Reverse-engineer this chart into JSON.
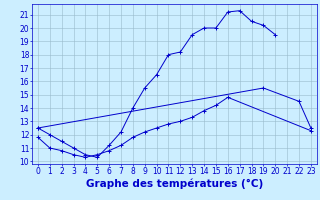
{
  "xlabel": "Graphe des températures (°C)",
  "bg_color": "#cceeff",
  "line_color": "#0000cc",
  "grid_color": "#99bbcc",
  "xlim": [
    -0.5,
    23.5
  ],
  "ylim": [
    9.8,
    21.8
  ],
  "yticks": [
    10,
    11,
    12,
    13,
    14,
    15,
    16,
    17,
    18,
    19,
    20,
    21
  ],
  "xticks": [
    0,
    1,
    2,
    3,
    4,
    5,
    6,
    7,
    8,
    9,
    10,
    11,
    12,
    13,
    14,
    15,
    16,
    17,
    18,
    19,
    20,
    21,
    22,
    23
  ],
  "line1_x": [
    0,
    1,
    2,
    3,
    4,
    5,
    6,
    7,
    8,
    9,
    10,
    11,
    12,
    13,
    14,
    15,
    16,
    17,
    18,
    19,
    20
  ],
  "line1_y": [
    12.5,
    12.0,
    11.5,
    11.0,
    10.5,
    10.3,
    11.2,
    12.2,
    14.0,
    15.5,
    16.5,
    18.0,
    18.2,
    19.5,
    20.0,
    20.0,
    21.2,
    21.3,
    20.5,
    20.2,
    19.5
  ],
  "line2_x": [
    0,
    19,
    22,
    23
  ],
  "line2_y": [
    12.5,
    15.5,
    14.5,
    12.5
  ],
  "line3_x": [
    0,
    1,
    2,
    3,
    4,
    5,
    6,
    7,
    8,
    9,
    10,
    11,
    12,
    13,
    14,
    15,
    16,
    23
  ],
  "line3_y": [
    11.8,
    11.0,
    10.8,
    10.5,
    10.3,
    10.5,
    10.8,
    11.2,
    11.8,
    12.2,
    12.5,
    12.8,
    13.0,
    13.3,
    13.8,
    14.2,
    14.8,
    12.3
  ],
  "tick_fontsize": 5.5,
  "xlabel_fontsize": 7.5
}
